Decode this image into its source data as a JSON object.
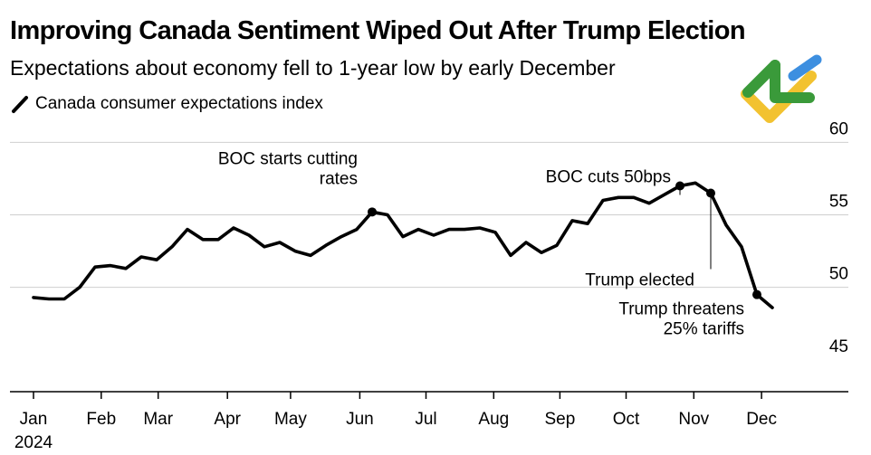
{
  "chart_data": {
    "type": "line",
    "title": "Improving Canada Sentiment Wiped Out After Trump Election",
    "subtitle": "Expectations about economy fell to 1-year low by early December",
    "legend": [
      "Canada consumer expectations index"
    ],
    "legend_position": "top-left",
    "xlabel": "",
    "ylabel": "",
    "ylim": [
      42.8,
      61.4
    ],
    "y_ticks": [
      45,
      50,
      55,
      60
    ],
    "y_axis_side": "right",
    "grid": true,
    "x_ticks": [
      {
        "label": "Jan",
        "week": 0
      },
      {
        "label": "Feb",
        "week": 4.4
      },
      {
        "label": "Mar",
        "week": 8.1
      },
      {
        "label": "Apr",
        "week": 12.6
      },
      {
        "label": "May",
        "week": 16.7
      },
      {
        "label": "Jun",
        "week": 21.2
      },
      {
        "label": "Jul",
        "week": 25.5
      },
      {
        "label": "Aug",
        "week": 29.9
      },
      {
        "label": "Sep",
        "week": 34.2
      },
      {
        "label": "Oct",
        "week": 38.5
      },
      {
        "label": "Nov",
        "week": 42.9
      },
      {
        "label": "Dec",
        "week": 47.3
      }
    ],
    "x_year_label": "2024",
    "series": [
      {
        "name": "Canada consumer expectations index",
        "color": "#000000",
        "week": [
          0,
          1,
          2,
          3,
          4,
          5,
          6,
          7,
          8,
          9,
          10,
          11,
          12,
          13,
          14,
          15,
          16,
          17,
          18,
          19,
          20,
          21,
          22,
          23,
          24,
          25,
          26,
          27,
          28,
          29,
          30,
          31,
          32,
          33,
          34,
          35,
          36,
          37,
          38,
          39,
          40,
          41,
          42,
          43,
          44,
          45,
          46,
          47,
          48
        ],
        "values": [
          49.3,
          49.2,
          49.2,
          50.0,
          51.4,
          51.5,
          51.3,
          52.1,
          51.9,
          52.8,
          54.0,
          53.3,
          53.3,
          54.1,
          53.6,
          52.8,
          53.1,
          52.5,
          52.2,
          52.9,
          53.5,
          54.0,
          55.2,
          55.0,
          53.5,
          54.0,
          53.6,
          54.0,
          54.0,
          54.1,
          53.8,
          52.2,
          53.1,
          52.4,
          52.9,
          54.6,
          54.4,
          56.0,
          56.2,
          56.2,
          55.8,
          56.4,
          57.0,
          57.2,
          56.5,
          54.3,
          52.8,
          49.5,
          48.6
        ]
      }
    ],
    "annotations": [
      {
        "lines": [
          "BOC starts cutting",
          "rates"
        ],
        "week": 22,
        "value": 55.2,
        "marker": true,
        "leader": false
      },
      {
        "lines": [
          "BOC cuts 50bps"
        ],
        "week": 42,
        "value": 57.0,
        "marker": true,
        "leader": true
      },
      {
        "lines": [
          "Trump elected"
        ],
        "week": 44,
        "value": 56.5,
        "marker": true,
        "leader": true
      },
      {
        "lines": [
          "Trump threatens",
          "25% tariffs"
        ],
        "week": 47,
        "value": 49.5,
        "marker": true,
        "leader": false
      }
    ]
  }
}
